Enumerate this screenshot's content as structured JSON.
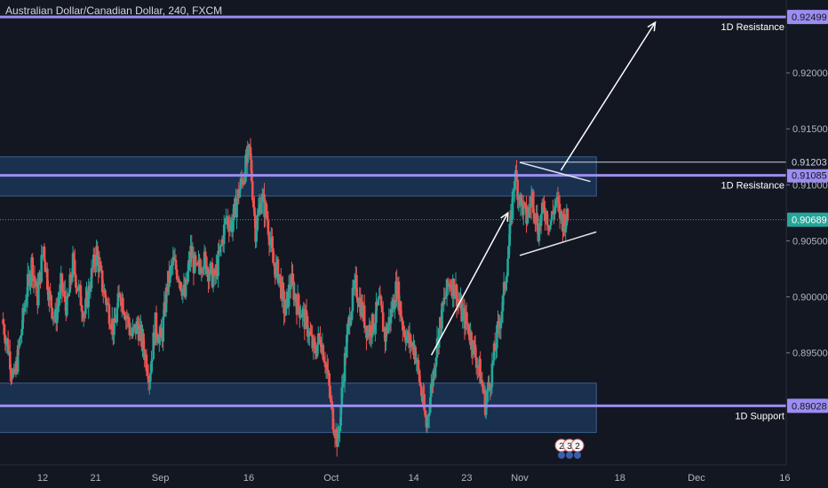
{
  "header": {
    "title": "Australian Dollar/Canadian Dollar, 240, FXCM"
  },
  "colors": {
    "background": "#131722",
    "up": "#26a69a",
    "down": "#ef5350",
    "level": "#9c8df0",
    "zone": "#1e3a5f",
    "current": "#26a69a",
    "annotation": "#ffffff"
  },
  "chart_data": {
    "type": "candlestick",
    "title": "Australian Dollar/Canadian Dollar, 240, FXCM",
    "ylim": [
      0.885,
      0.9265
    ],
    "y_ticks": [
      "0.92000",
      "0.91500",
      "0.91000",
      "0.90500",
      "0.90000",
      "0.89500"
    ],
    "x_ticks": [
      {
        "label": "12",
        "day": 12
      },
      {
        "label": "21",
        "day": 21
      },
      {
        "label": "Sep",
        "day": 32
      },
      {
        "label": "16",
        "day": 47
      },
      {
        "label": "Oct",
        "day": 61
      },
      {
        "label": "14",
        "day": 75
      },
      {
        "label": "23",
        "day": 84
      },
      {
        "label": "Nov",
        "day": 93
      },
      {
        "label": "18",
        "day": 110
      },
      {
        "label": "Dec",
        "day": 123
      },
      {
        "label": "16",
        "day": 138
      }
    ],
    "price_path": [
      [
        5,
        0.898
      ],
      [
        6,
        0.8955
      ],
      [
        7,
        0.8925
      ],
      [
        8,
        0.896
      ],
      [
        9,
        0.9
      ],
      [
        10,
        0.903
      ],
      [
        11,
        0.9
      ],
      [
        12,
        0.9045
      ],
      [
        13,
        0.9
      ],
      [
        14,
        0.898
      ],
      [
        15,
        0.901
      ],
      [
        16,
        0.899
      ],
      [
        17,
        0.903
      ],
      [
        18,
        0.9005
      ],
      [
        19,
        0.8985
      ],
      [
        20,
        0.9015
      ],
      [
        21,
        0.904
      ],
      [
        22,
        0.901
      ],
      [
        23,
        0.899
      ],
      [
        24,
        0.897
      ],
      [
        25,
        0.9005
      ],
      [
        26,
        0.8985
      ],
      [
        27,
        0.8965
      ],
      [
        28,
        0.8975
      ],
      [
        29,
        0.8955
      ],
      [
        30,
        0.893
      ],
      [
        31,
        0.8975
      ],
      [
        32,
        0.896
      ],
      [
        33,
        0.901
      ],
      [
        34,
        0.903
      ],
      [
        35,
        0.902
      ],
      [
        36,
        0.9
      ],
      [
        37,
        0.904
      ],
      [
        38,
        0.902
      ],
      [
        39,
        0.9035
      ],
      [
        40,
        0.9025
      ],
      [
        41,
        0.9015
      ],
      [
        42,
        0.904
      ],
      [
        43,
        0.907
      ],
      [
        44,
        0.9065
      ],
      [
        45,
        0.909
      ],
      [
        46,
        0.911
      ],
      [
        47,
        0.913
      ],
      [
        48,
        0.906
      ],
      [
        49,
        0.909
      ],
      [
        50,
        0.907
      ],
      [
        51,
        0.903
      ],
      [
        52,
        0.902
      ],
      [
        53,
        0.8985
      ],
      [
        54,
        0.9015
      ],
      [
        55,
        0.8995
      ],
      [
        56,
        0.8985
      ],
      [
        57,
        0.897
      ],
      [
        58,
        0.895
      ],
      [
        59,
        0.8965
      ],
      [
        60,
        0.894
      ],
      [
        61,
        0.8895
      ],
      [
        62,
        0.887
      ],
      [
        63,
        0.8935
      ],
      [
        64,
        0.8985
      ],
      [
        65,
        0.901
      ],
      [
        66,
        0.899
      ],
      [
        67,
        0.897
      ],
      [
        68,
        0.8975
      ],
      [
        69,
        0.8995
      ],
      [
        70,
        0.8965
      ],
      [
        71,
        0.8985
      ],
      [
        72,
        0.901
      ],
      [
        73,
        0.8975
      ],
      [
        74,
        0.896
      ],
      [
        75,
        0.8955
      ],
      [
        76,
        0.892
      ],
      [
        77,
        0.8885
      ],
      [
        78,
        0.8925
      ],
      [
        79,
        0.8965
      ],
      [
        80,
        0.8995
      ],
      [
        81,
        0.9015
      ],
      [
        82,
        0.9005
      ],
      [
        83,
        0.8985
      ],
      [
        84,
        0.8975
      ],
      [
        85,
        0.8955
      ],
      [
        86,
        0.8935
      ],
      [
        87,
        0.8905
      ],
      [
        88,
        0.893
      ],
      [
        89,
        0.8965
      ],
      [
        90,
        0.8995
      ],
      [
        91,
        0.9045
      ],
      [
        92,
        0.911
      ],
      [
        93,
        0.9085
      ],
      [
        94,
        0.907
      ],
      [
        95,
        0.909
      ],
      [
        96,
        0.906
      ],
      [
        97,
        0.908
      ],
      [
        98,
        0.9065
      ],
      [
        99,
        0.9085
      ],
      [
        100,
        0.9068
      ],
      [
        101,
        0.9069
      ]
    ],
    "levels": [
      {
        "label": "1D Resistance",
        "price": 0.92499,
        "price_label": "0.92499"
      },
      {
        "label": "1D Resistance",
        "price": 0.91085,
        "price_label": "0.91085"
      },
      {
        "label": "1D Support",
        "price": 0.89028,
        "price_label": "0.89028"
      }
    ],
    "zones": [
      {
        "from_day": 0,
        "to_day": 106,
        "low": 0.909,
        "high": 0.9125
      },
      {
        "from_day": 0,
        "to_day": 106,
        "low": 0.8879,
        "high": 0.8923
      }
    ],
    "marker_line": {
      "price": 0.91203,
      "price_label": "0.91203",
      "from_day": 93
    },
    "current_price": {
      "price": 0.90689,
      "price_label": "0.90689"
    },
    "trendlines": [
      {
        "kind": "upper",
        "from": [
          93,
          0.912
        ],
        "to": [
          105,
          0.9103
        ]
      },
      {
        "kind": "lower",
        "from": [
          93,
          0.9037
        ],
        "to": [
          106,
          0.9058
        ]
      }
    ],
    "arrows": [
      {
        "from": [
          78,
          0.8948
        ],
        "to": [
          91,
          0.9075
        ]
      },
      {
        "from": [
          100,
          0.9113
        ],
        "to": [
          116,
          0.9245
        ]
      }
    ],
    "event_markers": [
      "2",
      "3",
      "2"
    ]
  }
}
